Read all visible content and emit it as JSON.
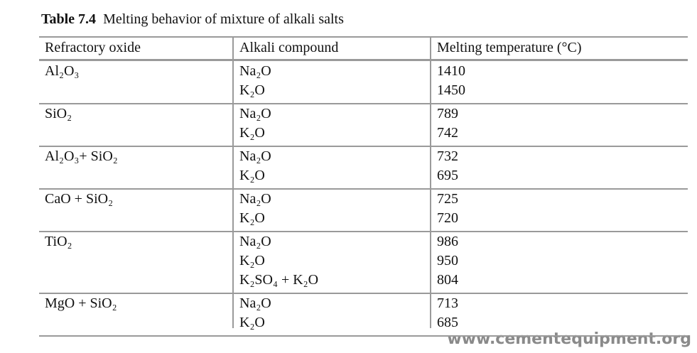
{
  "title": {
    "label": "Table 7.4",
    "text": "Melting behavior of mixture of alkali salts"
  },
  "table": {
    "headers": [
      "Refractory oxide",
      "Alkali compound",
      "Melting temperature (°C)"
    ],
    "groups": [
      {
        "oxide": "Al₂O₃",
        "compounds": [
          "Na₂O",
          "K₂O"
        ],
        "temperatures": [
          1410,
          1450
        ]
      },
      {
        "oxide": "SiO₂",
        "compounds": [
          "Na₂O",
          "K₂O"
        ],
        "temperatures": [
          789,
          742
        ]
      },
      {
        "oxide": "Al₂O₃+ SiO₂",
        "compounds": [
          "Na₂O",
          "K₂O"
        ],
        "temperatures": [
          732,
          695
        ]
      },
      {
        "oxide": "CaO + SiO₂",
        "compounds": [
          "Na₂O",
          "K₂O"
        ],
        "temperatures": [
          725,
          720
        ]
      },
      {
        "oxide": "TiO₂",
        "compounds": [
          "Na₂O",
          "K₂O",
          "K₂SO₄ + K₂O"
        ],
        "temperatures": [
          986,
          950,
          804
        ]
      },
      {
        "oxide": "MgO + SiO₂",
        "compounds": [
          "Na₂O",
          "K₂O"
        ],
        "temperatures": [
          713,
          685
        ]
      }
    ]
  },
  "watermark": "www.cementequipment.org"
}
